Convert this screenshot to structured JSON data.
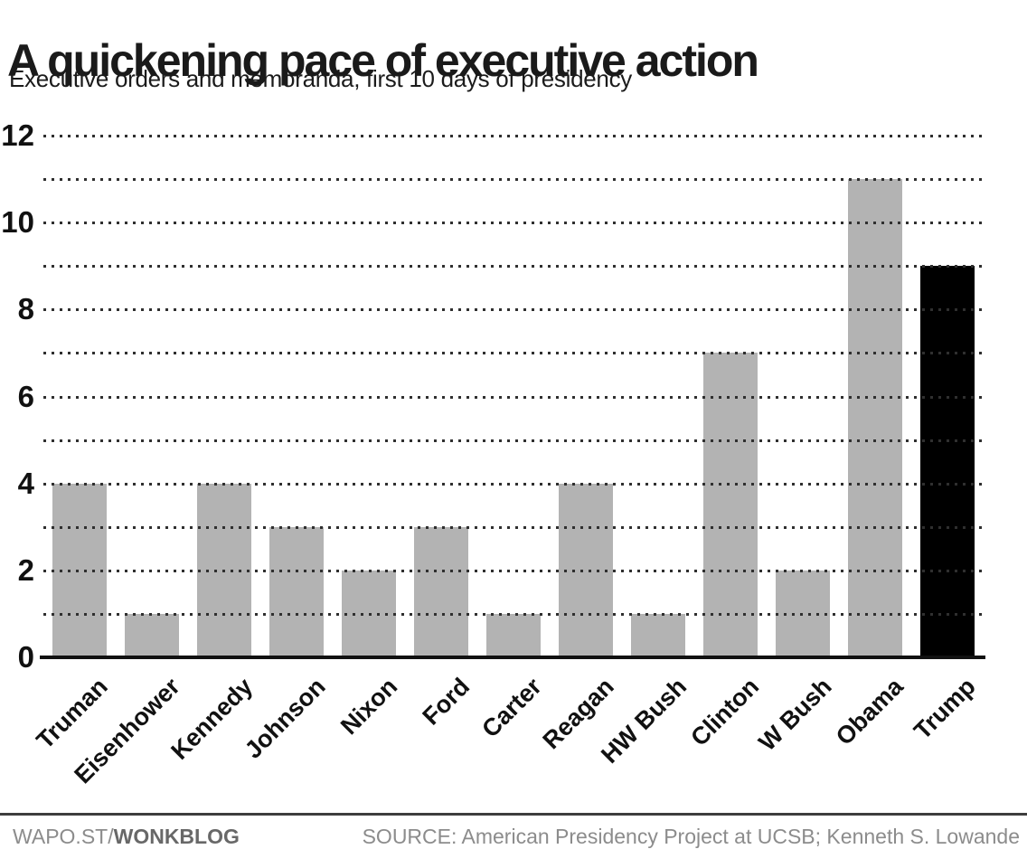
{
  "header": {
    "title": "A quickening pace of executive action",
    "subtitle": "Executive orders and memoranda, first 10 days of presidency"
  },
  "chart_data": {
    "type": "bar",
    "title": "A quickening pace of executive action",
    "subtitle": "Executive orders and memoranda, first 10 days of presidency",
    "categories": [
      "Truman",
      "Eisenhower",
      "Kennedy",
      "Johnson",
      "Nixon",
      "Ford",
      "Carter",
      "Reagan",
      "HW Bush",
      "Clinton",
      "W Bush",
      "Obama",
      "Trump"
    ],
    "values": [
      4,
      1,
      4,
      3,
      2,
      3,
      1,
      4,
      1,
      7,
      2,
      11,
      9
    ],
    "xlabel": "",
    "ylabel": "",
    "ylim": [
      0,
      12
    ],
    "ytick_labels": [
      0,
      2,
      4,
      6,
      8,
      10,
      12
    ],
    "gridline_step": 1,
    "grid_style": "dotted",
    "legend": "none",
    "highlight_category": "Trump",
    "bar_color": "#b3b3b3",
    "highlight_color": "#000000"
  },
  "footer": {
    "brand_prefix": "WAPO.ST/",
    "brand_bold": "WONKBLOG",
    "source": "SOURCE: American Presidency Project at UCSB; Kenneth S. Lowande"
  },
  "colors": {
    "background": "#ffffff",
    "grid_dot": "#2f2f2f",
    "axis_line": "#111111",
    "text": "#111111",
    "footer_text": "#8c8c8c",
    "footer_rule": "#3d3d3d"
  }
}
